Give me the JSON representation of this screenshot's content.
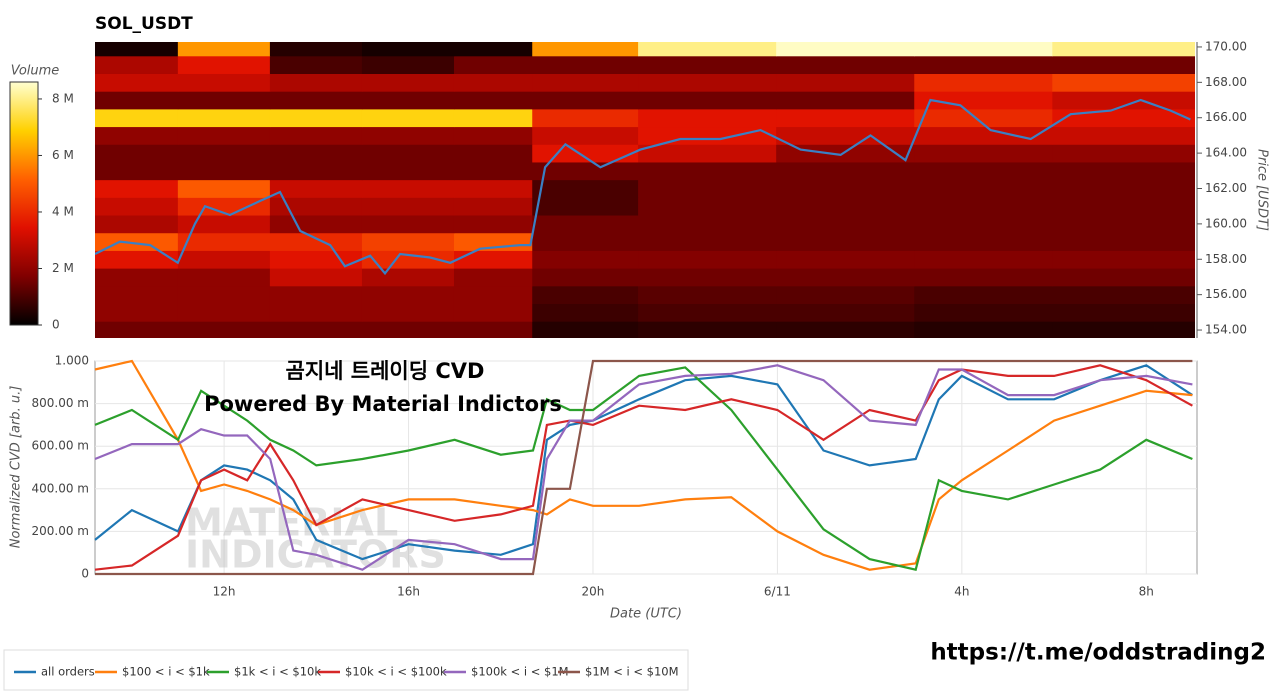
{
  "chart_data": [
    {
      "type": "heatmap",
      "title": "SOL_USDT",
      "xlim": [
        9.2,
        33.1
      ],
      "x_edges": [
        9.2,
        11,
        13,
        15,
        17,
        18.7,
        21,
        24,
        27,
        30,
        33.1
      ],
      "y": [
        154,
        155,
        156,
        157,
        158,
        159,
        160,
        161,
        162,
        163,
        164,
        165,
        166,
        167,
        168,
        169,
        170
      ],
      "z": [
        [
          1.5,
          1.5,
          1.5,
          1.5,
          1.5,
          0.5,
          0.6,
          0.6,
          0.5,
          0.5
        ],
        [
          2,
          2,
          2,
          2,
          2,
          0.8,
          1,
          1,
          0.8,
          0.8
        ],
        [
          2,
          2,
          2,
          2,
          2,
          1,
          1.2,
          1.2,
          1,
          1
        ],
        [
          2,
          2,
          3,
          2.5,
          2,
          1.5,
          1.5,
          1.5,
          1.5,
          1.5
        ],
        [
          3.5,
          3,
          3.5,
          4,
          3.5,
          1.8,
          1.8,
          1.8,
          1.8,
          1.8
        ],
        [
          5,
          4,
          4,
          4.5,
          5,
          1.5,
          1.5,
          1.5,
          1.5,
          1.5
        ],
        [
          2.5,
          3,
          2,
          2,
          2,
          1.5,
          1.5,
          1.5,
          1.5,
          1.5
        ],
        [
          3,
          4,
          2.5,
          2.5,
          2.5,
          1,
          1.5,
          1.5,
          1.5,
          1.5
        ],
        [
          3.5,
          5,
          3,
          3,
          3,
          1,
          1.5,
          1.5,
          1.5,
          1.5
        ],
        [
          1.5,
          1.5,
          1.5,
          1.5,
          1.5,
          1.5,
          1.5,
          1.5,
          1.5,
          1.5
        ],
        [
          1.5,
          1.5,
          1.5,
          1.5,
          1.5,
          3.5,
          3,
          2,
          2,
          2
        ],
        [
          2,
          2,
          2,
          2,
          2,
          3,
          3.5,
          3,
          3,
          3
        ],
        [
          7,
          7,
          7,
          7,
          7,
          4,
          3.5,
          3.5,
          4,
          3.5
        ],
        [
          1.5,
          1.5,
          1.5,
          1.5,
          1.5,
          1.5,
          1.5,
          1.5,
          3.5,
          3
        ],
        [
          3,
          3,
          2.5,
          2.5,
          2.5,
          2.5,
          2.5,
          2.5,
          4,
          4.5
        ],
        [
          2.5,
          3.5,
          1,
          0.8,
          1.5,
          1.5,
          1.5,
          1.5,
          1.5,
          1.5
        ],
        [
          0.3,
          6,
          0.5,
          0.3,
          0.3,
          6,
          8,
          8.5,
          8.5,
          8
        ]
      ],
      "colormap": [
        "#000000",
        "#800000",
        "#e01000",
        "#ff6000",
        "#ffd000",
        "#ffffd0"
      ],
      "colorbar": {
        "label": "Volume",
        "lim": [
          0,
          8.6
        ],
        "ticks": [
          0,
          {
            "value": 2,
            "label": "2 M"
          },
          {
            "value": 4,
            "label": "4 M"
          },
          {
            "value": 6,
            "label": "6 M"
          },
          {
            "value": 8,
            "label": "8 M"
          }
        ]
      },
      "ylabel": "Price [USDT]",
      "ylim": [
        153.55,
        170.28
      ],
      "yticks": [
        {
          "value": 154,
          "label": "154.00"
        },
        {
          "value": 156,
          "label": "156.00"
        },
        {
          "value": 158,
          "label": "158.00"
        },
        {
          "value": 160,
          "label": "160.00"
        },
        {
          "value": 162,
          "label": "162.00"
        },
        {
          "value": 164,
          "label": "164.00"
        },
        {
          "value": 166,
          "label": "166.00"
        },
        {
          "value": 168,
          "label": "168.00"
        },
        {
          "value": 170,
          "label": "170.00"
        }
      ],
      "price": {
        "color": "#3a80c4",
        "x": [
          9.2,
          9.74,
          10.4,
          11.0,
          11.37,
          11.59,
          12.13,
          12.79,
          13.22,
          13.66,
          14.31,
          14.63,
          15.18,
          15.5,
          15.83,
          16.48,
          16.92,
          17.57,
          18.44,
          18.66,
          18.98,
          19.42,
          20.18,
          21.05,
          21.92,
          22.79,
          23.66,
          24.53,
          25.4,
          26.05,
          26.81,
          27.35,
          28.0,
          28.66,
          29.53,
          30.4,
          31.27,
          31.92,
          32.57,
          33.0
        ],
        "values": [
          158.3,
          159,
          158.8,
          157.8,
          160,
          161,
          160.5,
          161.3,
          161.8,
          159.6,
          158.8,
          157.6,
          158.2,
          157.2,
          158.3,
          158.1,
          157.8,
          158.6,
          158.8,
          158.8,
          163.2,
          164.5,
          163.2,
          164.2,
          164.8,
          164.8,
          165.3,
          164.2,
          163.9,
          165,
          163.6,
          167,
          166.7,
          165.3,
          164.8,
          166.2,
          166.4,
          167,
          166.4,
          165.9
        ]
      }
    },
    {
      "type": "line",
      "xlabel": "Date (UTC)",
      "ylabel": "Normalized CVD [arb. u.]",
      "xlim": [
        9.2,
        33.1
      ],
      "xticks": [
        {
          "value": 12,
          "label": "12h"
        },
        {
          "value": 16,
          "label": "16h"
        },
        {
          "value": 20,
          "label": "20h"
        },
        {
          "value": 24,
          "label": "6/11"
        },
        {
          "value": 28,
          "label": "4h"
        },
        {
          "value": 32,
          "label": "8h"
        }
      ],
      "ylim": [
        0,
        1
      ],
      "yticks": [
        0,
        {
          "value": 0.2,
          "label": "200.00 m"
        },
        {
          "value": 0.4,
          "label": "400.00 m"
        },
        {
          "value": 0.6,
          "label": "600.00 m"
        },
        {
          "value": 0.8,
          "label": "800.00 m"
        },
        {
          "value": 1,
          "label": "1.000"
        }
      ],
      "grid": true,
      "annotations": [
        "곰지네 트레이딩 CVD",
        "Powered By Material Indictors"
      ],
      "watermark": [
        "MATERIAL",
        "INDICATORS"
      ],
      "x": [
        9.2,
        10,
        11,
        11.5,
        12,
        12.5,
        13,
        13.5,
        14,
        15,
        16,
        17,
        18,
        18.7,
        19,
        19.5,
        20,
        21,
        22,
        23,
        24,
        25,
        26,
        27,
        27.5,
        28,
        29,
        30,
        31,
        32,
        33
      ],
      "series": [
        {
          "name": "all orders",
          "color": "#1f77b4",
          "values": [
            0.16,
            0.3,
            0.2,
            0.44,
            0.51,
            0.49,
            0.44,
            0.35,
            0.16,
            0.07,
            0.14,
            0.11,
            0.09,
            0.14,
            0.63,
            0.7,
            0.72,
            0.82,
            0.91,
            0.93,
            0.89,
            0.58,
            0.51,
            0.54,
            0.82,
            0.93,
            0.82,
            0.82,
            0.91,
            0.98,
            0.84
          ]
        },
        {
          "name": "$100 < i < $1k",
          "color": "#ff7f0e",
          "values": [
            0.96,
            1.0,
            0.63,
            0.39,
            0.42,
            0.39,
            0.35,
            0.3,
            0.23,
            0.3,
            0.35,
            0.35,
            0.32,
            0.3,
            0.28,
            0.35,
            0.32,
            0.32,
            0.35,
            0.36,
            0.2,
            0.09,
            0.02,
            0.05,
            0.35,
            0.44,
            0.58,
            0.72,
            0.79,
            0.86,
            0.84
          ]
        },
        {
          "name": "$1k < i < $10k",
          "color": "#2ca02c",
          "values": [
            0.7,
            0.77,
            0.63,
            0.86,
            0.79,
            0.72,
            0.63,
            0.58,
            0.51,
            0.54,
            0.58,
            0.63,
            0.56,
            0.58,
            0.82,
            0.77,
            0.77,
            0.93,
            0.97,
            0.77,
            0.49,
            0.21,
            0.07,
            0.02,
            0.44,
            0.39,
            0.35,
            0.42,
            0.49,
            0.63,
            0.54
          ]
        },
        {
          "name": "$10k < i < $100k",
          "color": "#d62728",
          "values": [
            0.02,
            0.04,
            0.18,
            0.44,
            0.49,
            0.44,
            0.61,
            0.44,
            0.23,
            0.35,
            0.3,
            0.25,
            0.28,
            0.32,
            0.7,
            0.72,
            0.7,
            0.79,
            0.77,
            0.82,
            0.77,
            0.63,
            0.77,
            0.72,
            0.91,
            0.96,
            0.93,
            0.93,
            0.98,
            0.91,
            0.79
          ]
        },
        {
          "name": "$100k < i < $1M",
          "color": "#9467bd",
          "values": [
            0.54,
            0.61,
            0.61,
            0.68,
            0.65,
            0.65,
            0.54,
            0.11,
            0.09,
            0.02,
            0.16,
            0.14,
            0.07,
            0.07,
            0.54,
            0.72,
            0.72,
            0.89,
            0.93,
            0.94,
            0.98,
            0.91,
            0.72,
            0.7,
            0.96,
            0.96,
            0.84,
            0.84,
            0.91,
            0.93,
            0.89
          ]
        },
        {
          "name": "$1M < i < $10M",
          "color": "#8c564b",
          "values": [
            0,
            0,
            0,
            0,
            0,
            0,
            0,
            0,
            0,
            0,
            0,
            0,
            0,
            0,
            0.4,
            0.4,
            1,
            1,
            1,
            1,
            1,
            1,
            1,
            1,
            1,
            1,
            1,
            1,
            1,
            1,
            1
          ]
        }
      ]
    }
  ],
  "footer": "https://t.me/oddstrading2"
}
